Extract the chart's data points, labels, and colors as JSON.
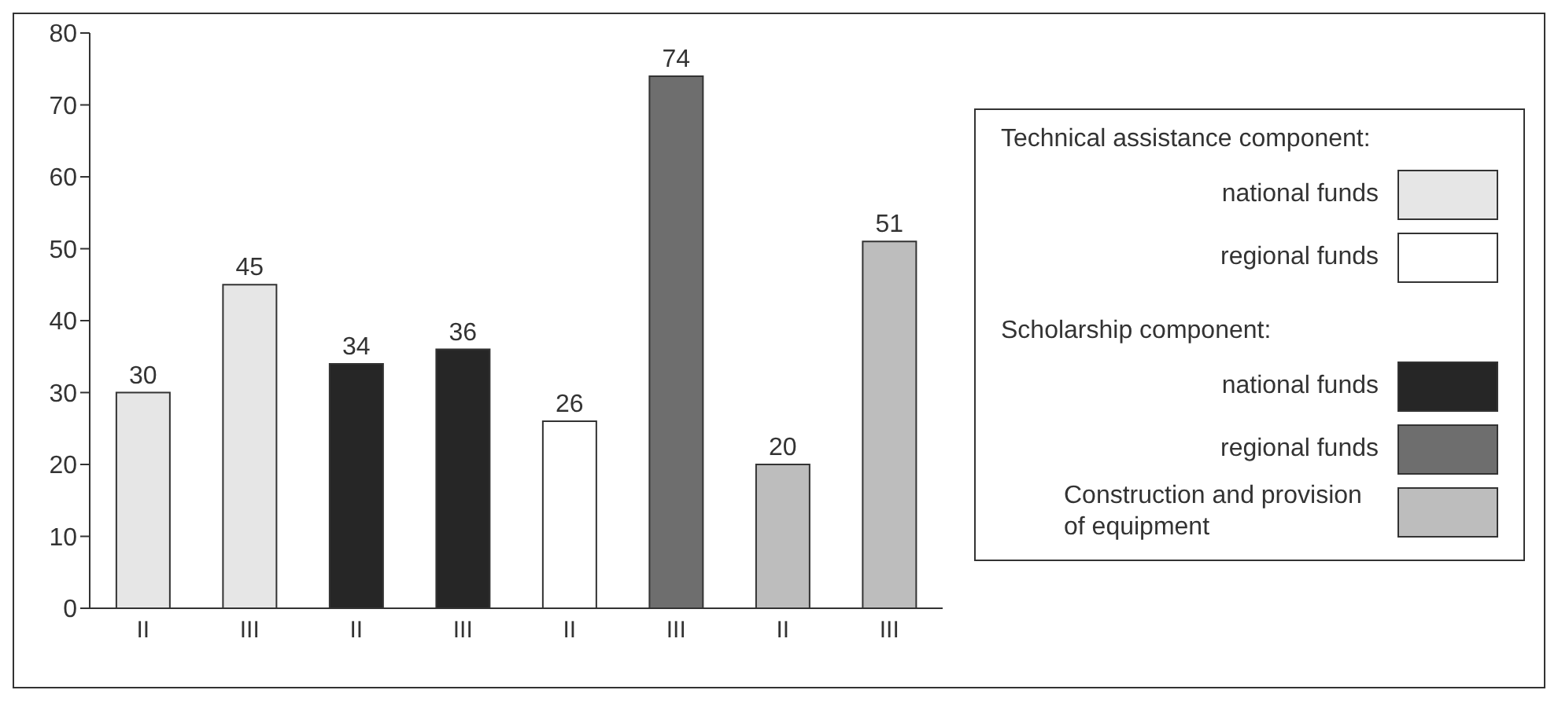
{
  "chart_data": {
    "type": "bar",
    "categories": [
      "II",
      "III",
      "II",
      "III",
      "II",
      "III",
      "II",
      "III"
    ],
    "series": [
      {
        "name": "national funds",
        "color": "#e6e6e6",
        "values": [
          30,
          45,
          null,
          null,
          null,
          null,
          null,
          null
        ]
      },
      {
        "name": "regional funds",
        "color": "#ffffff",
        "values": [
          null,
          null,
          null,
          null,
          26,
          null,
          null,
          null
        ]
      },
      {
        "name": "national funds",
        "color": "#262626",
        "values": [
          null,
          null,
          34,
          36,
          null,
          null,
          null,
          null
        ]
      },
      {
        "name": "regional funds",
        "color": "#6e6e6e",
        "values": [
          null,
          null,
          null,
          null,
          null,
          74,
          null,
          null
        ]
      },
      {
        "name": "Construction and provision of equipment",
        "color": "#bdbdbd",
        "values": [
          null,
          null,
          null,
          null,
          null,
          null,
          20,
          51
        ]
      }
    ],
    "stacked": true,
    "ylim": [
      0,
      80
    ],
    "yticks": [
      0,
      10,
      20,
      30,
      40,
      50,
      60,
      70,
      80
    ],
    "grid": false,
    "data_labels": true,
    "legend": "right",
    "annotations": [
      "Technical assistance component:",
      "Scholarship component:"
    ]
  }
}
